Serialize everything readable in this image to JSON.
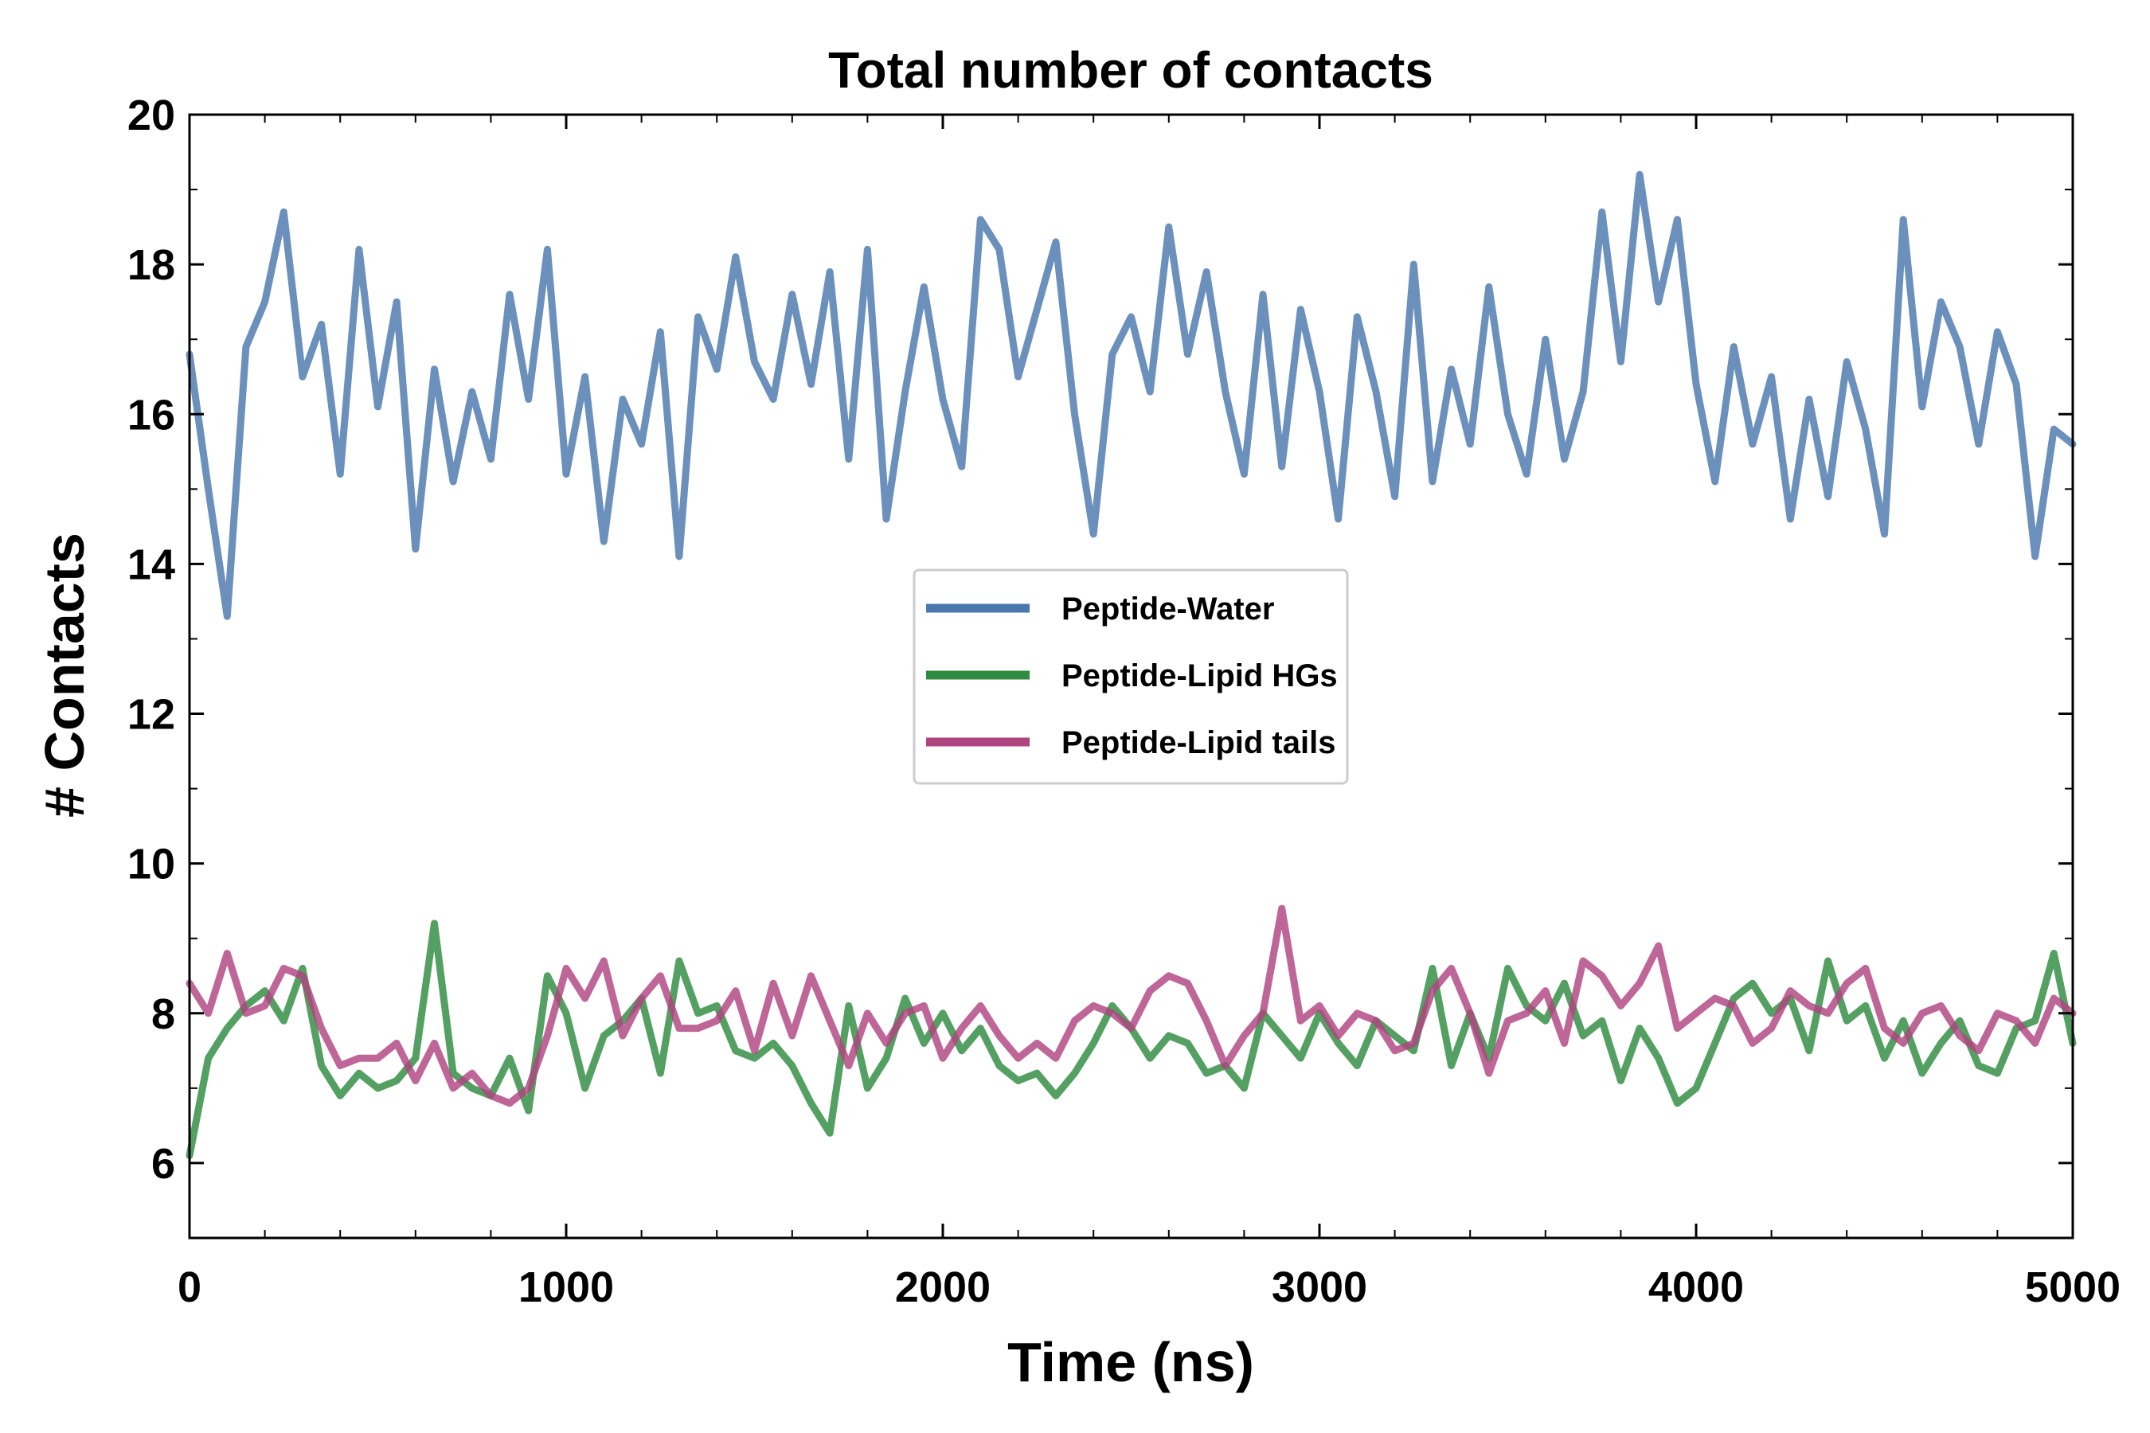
{
  "chart_data": {
    "type": "line",
    "title": "Total number of contacts",
    "xlabel": "Time (ns)",
    "ylabel": "# Contacts",
    "xlim": [
      0,
      5000
    ],
    "ylim": [
      5,
      20
    ],
    "xticks": [
      0,
      1000,
      2000,
      3000,
      4000,
      5000
    ],
    "yticks": [
      6,
      8,
      10,
      12,
      14,
      16,
      18,
      20
    ],
    "legend_position": "center",
    "grid": false,
    "x": [
      0,
      50,
      100,
      150,
      200,
      250,
      300,
      350,
      400,
      450,
      500,
      550,
      600,
      650,
      700,
      750,
      800,
      850,
      900,
      950,
      1000,
      1050,
      1100,
      1150,
      1200,
      1250,
      1300,
      1350,
      1400,
      1450,
      1500,
      1550,
      1600,
      1650,
      1700,
      1750,
      1800,
      1850,
      1900,
      1950,
      2000,
      2050,
      2100,
      2150,
      2200,
      2250,
      2300,
      2350,
      2400,
      2450,
      2500,
      2550,
      2600,
      2650,
      2700,
      2750,
      2800,
      2850,
      2900,
      2950,
      3000,
      3050,
      3100,
      3150,
      3200,
      3250,
      3300,
      3350,
      3400,
      3450,
      3500,
      3550,
      3600,
      3650,
      3700,
      3750,
      3800,
      3850,
      3900,
      3950,
      4000,
      4050,
      4100,
      4150,
      4200,
      4250,
      4300,
      4350,
      4400,
      4450,
      4500,
      4550,
      4600,
      4650,
      4700,
      4750,
      4800,
      4850,
      4900,
      4950,
      5000
    ],
    "series": [
      {
        "name": "Peptide-Water",
        "color": "#4a78ad",
        "values": [
          16.8,
          15.0,
          13.3,
          16.9,
          17.5,
          18.7,
          16.5,
          17.2,
          15.2,
          18.2,
          16.1,
          17.5,
          14.2,
          16.6,
          15.1,
          16.3,
          15.4,
          17.6,
          16.2,
          18.2,
          15.2,
          16.5,
          14.3,
          16.2,
          15.6,
          17.1,
          14.1,
          17.3,
          16.6,
          18.1,
          16.7,
          16.2,
          17.6,
          16.4,
          17.9,
          15.4,
          18.2,
          14.6,
          16.3,
          17.7,
          16.2,
          15.3,
          18.6,
          18.2,
          16.5,
          17.4,
          18.3,
          16.0,
          14.4,
          16.8,
          17.3,
          16.3,
          18.5,
          16.8,
          17.9,
          16.3,
          15.2,
          17.6,
          15.3,
          17.4,
          16.3,
          14.6,
          17.3,
          16.3,
          14.9,
          18.0,
          15.1,
          16.6,
          15.6,
          17.7,
          16.0,
          15.2,
          17.0,
          15.4,
          16.3,
          18.7,
          16.7,
          19.2,
          17.5,
          18.6,
          16.4,
          15.1,
          16.9,
          15.6,
          16.5,
          14.6,
          16.2,
          14.9,
          16.7,
          15.8,
          14.4,
          18.6,
          16.1,
          17.5,
          16.9,
          15.6,
          17.1,
          16.4,
          14.1,
          15.8,
          15.6
        ]
      },
      {
        "name": "Peptide-Lipid HGs",
        "color": "#2e8b3f",
        "values": [
          6.1,
          7.4,
          7.8,
          8.1,
          8.3,
          7.9,
          8.6,
          7.3,
          6.9,
          7.2,
          7.0,
          7.1,
          7.4,
          9.2,
          7.2,
          7.0,
          6.9,
          7.4,
          6.7,
          8.5,
          8.0,
          7.0,
          7.7,
          7.9,
          8.2,
          7.2,
          8.7,
          8.0,
          8.1,
          7.5,
          7.4,
          7.6,
          7.3,
          6.8,
          6.4,
          8.1,
          7.0,
          7.4,
          8.2,
          7.6,
          8.0,
          7.5,
          7.8,
          7.3,
          7.1,
          7.2,
          6.9,
          7.2,
          7.6,
          8.1,
          7.8,
          7.4,
          7.7,
          7.6,
          7.2,
          7.3,
          7.0,
          8.0,
          7.7,
          7.4,
          8.0,
          7.6,
          7.3,
          7.9,
          7.7,
          7.5,
          8.6,
          7.3,
          8.0,
          7.4,
          8.6,
          8.1,
          7.9,
          8.4,
          7.7,
          7.9,
          7.1,
          7.8,
          7.4,
          6.8,
          7.0,
          7.6,
          8.2,
          8.4,
          8.0,
          8.2,
          7.5,
          8.7,
          7.9,
          8.1,
          7.4,
          7.9,
          7.2,
          7.6,
          7.9,
          7.3,
          7.2,
          7.8,
          7.9,
          8.8,
          7.6
        ]
      },
      {
        "name": "Peptide-Lipid tails",
        "color": "#b04480",
        "values": [
          8.4,
          8.0,
          8.8,
          8.0,
          8.1,
          8.6,
          8.5,
          7.8,
          7.3,
          7.4,
          7.4,
          7.6,
          7.1,
          7.6,
          7.0,
          7.2,
          6.9,
          6.8,
          7.0,
          7.7,
          8.6,
          8.2,
          8.7,
          7.7,
          8.2,
          8.5,
          7.8,
          7.8,
          7.9,
          8.3,
          7.5,
          8.4,
          7.7,
          8.5,
          7.9,
          7.3,
          8.0,
          7.6,
          8.0,
          8.1,
          7.4,
          7.8,
          8.1,
          7.7,
          7.4,
          7.6,
          7.4,
          7.9,
          8.1,
          8.0,
          7.8,
          8.3,
          8.5,
          8.4,
          7.9,
          7.3,
          7.7,
          8.0,
          9.4,
          7.9,
          8.1,
          7.7,
          8.0,
          7.9,
          7.5,
          7.6,
          8.3,
          8.6,
          8.0,
          7.2,
          7.9,
          8.0,
          8.3,
          7.6,
          8.7,
          8.5,
          8.1,
          8.4,
          8.9,
          7.8,
          8.0,
          8.2,
          8.1,
          7.6,
          7.8,
          8.3,
          8.1,
          8.0,
          8.4,
          8.6,
          7.8,
          7.6,
          8.0,
          8.1,
          7.7,
          7.5,
          8.0,
          7.9,
          7.6,
          8.2,
          8.0
        ]
      }
    ]
  }
}
